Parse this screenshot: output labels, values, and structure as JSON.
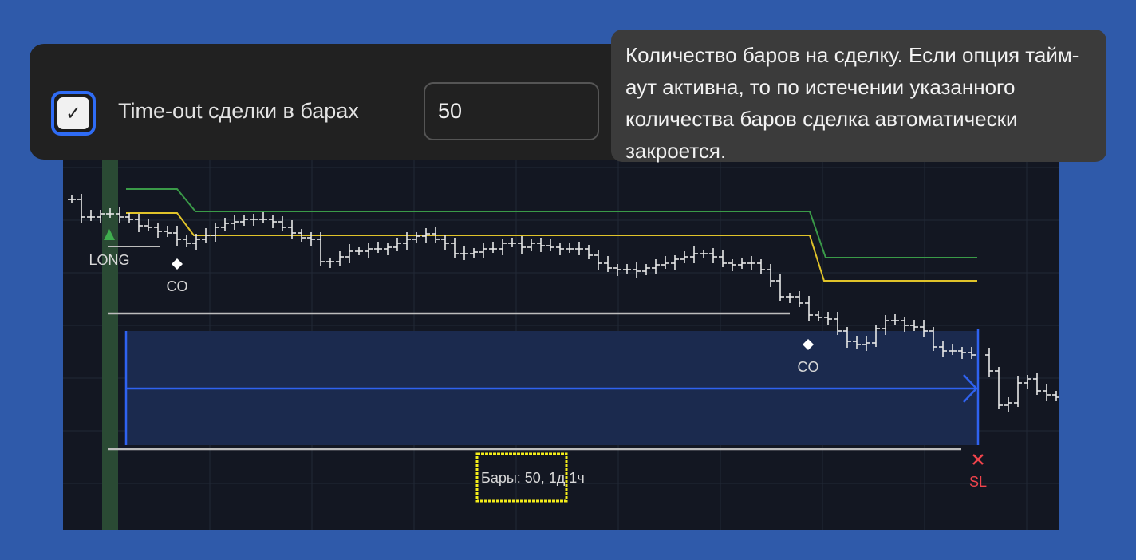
{
  "settings": {
    "timeout_checkbox_checked": true,
    "timeout_label": "Time-out сделки в барах",
    "timeout_value": "50"
  },
  "tooltip": {
    "text": "Количество баров на сделку. Если опция тайм-аут активна, то по истечении указанного количества баров сделка автоматически закроется."
  },
  "chart": {
    "entry_label": "LONG",
    "co_label_1": "CO",
    "co_label_2": "CO",
    "sl_label": "SL",
    "bars_label": "Бары: 50, 1д 1ч",
    "colors": {
      "background": "#131722",
      "take_profit_line": "#3a9a48",
      "stop_line": "#e0c32a",
      "timeout_zone": "#1b2a4e",
      "timeout_arrow": "#2f62f0",
      "sl": "#f0444c",
      "highlight": "#f5ee1a",
      "entry_band": "#2a4a34"
    }
  }
}
